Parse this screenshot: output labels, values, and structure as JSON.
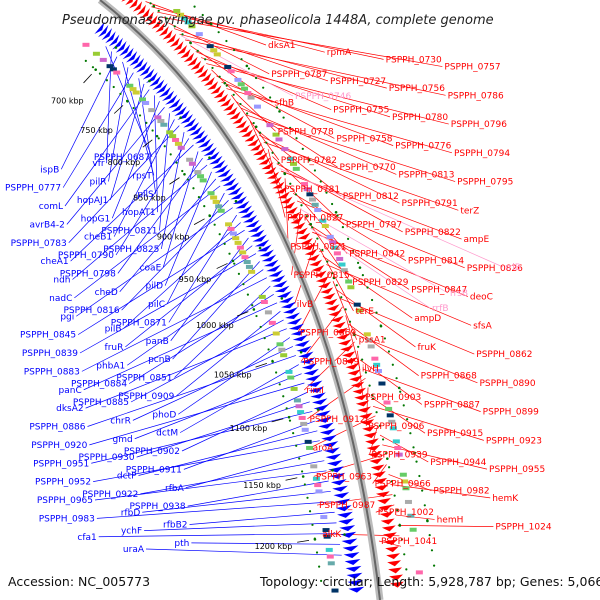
{
  "title": "Pseudomonas syringae pv. phaseolicola 1448A, complete genome",
  "footer": {
    "accession": "Accession: NC_005773",
    "topology": "Topology: circular; Length: 5,928,787 bp; Genes: 5,066"
  },
  "colors": {
    "forward": "#ff0000",
    "reverse": "#0000ff",
    "rna": "#ff99cc",
    "backbone": "#999999",
    "tick": "#007700"
  },
  "kbp_ticks": [
    "700 kbp",
    "750 kbp",
    "800 kbp",
    "850 kbp",
    "900 kbp",
    "950 kbp",
    "1000 kbp",
    "1050 kbp",
    "1100 kbp",
    "1150 kbp",
    "1200 kbp"
  ],
  "labels_right": [
    "dksA1",
    "rpmA",
    "PSPPH_0730",
    "PSPPH_0757",
    "PSPPH_0787",
    "PSPPH_0727",
    "PSPPH_0756",
    "PSPPH_0786",
    "sfhB",
    "PSPPH_0755",
    "PSPPH_0780",
    "PSPPH_0796",
    "PSPPH_0778",
    "PSPPH_0758",
    "PSPPH_0776",
    "PSPPH_0794",
    "PSPPH_0782",
    "PSPPH_0770",
    "PSPPH_0813",
    "PSPPH_0795",
    "PSPPH_0781",
    "PSPPH_0812",
    "PSPPH_0791",
    "terZ",
    "PSPPH_0827",
    "PSPPH_0797",
    "PSPPH_0822",
    "ampE",
    "PSPPH_0821",
    "PSPPH_0842",
    "PSPPH_0814",
    "PSPPH_0826",
    "PSPPH_0815",
    "PSPPH_0829",
    "PSPPH_0847",
    "deoC",
    "ilvB",
    "terE",
    "ampD",
    "sfsA",
    "PSPPH_0869",
    "pssA1",
    "fruK",
    "PSPPH_0862",
    "PSPPH_0849",
    "ilvH",
    "PSPPH_0868",
    "PSPPH_0890",
    "rimI",
    "PSPPH_0903",
    "PSPPH_0887",
    "PSPPH_0899",
    "PSPPH_0912",
    "PSPPH_0906",
    "PSPPH_0915",
    "PSPPH_0923",
    "aroA",
    "PSPPH_0939",
    "PSPPH_0944",
    "PSPPH_0955",
    "PSPPH_0963",
    "PSPPH_0966",
    "PSPPH_0982",
    "hemK",
    "PSPPH_0987",
    "PSPPH_1002",
    "hemH",
    "PSPPH_1024",
    "alkK",
    "PSPPH_1041"
  ],
  "labels_rna": [
    "PSPPH_0746",
    "rrlB",
    "rrsB",
    "rrfB"
  ],
  "labels_left": [
    "PSPPH_0687",
    "vfr",
    "ispB",
    "rpsT",
    "pilR",
    "PSPPH_0777",
    "pilS",
    "hopAJ1",
    "comL",
    "hopAT1",
    "hopG1",
    "avrB4-2",
    "PSPPH_0811",
    "cheB1",
    "PSPPH_0783",
    "PSPPH_0825",
    "PSPPH_0790",
    "cheA1",
    "coaE",
    "PSPPH_0798",
    "ndh",
    "pilD",
    "cheD",
    "nadC",
    "pilC",
    "PSPPH_0816",
    "pgi",
    "PSPPH_0871",
    "pilB",
    "PSPPH_0845",
    "panB",
    "fruR",
    "PSPPH_0839",
    "pcnB",
    "phbA1",
    "PSPPH_0883",
    "PSPPH_0851",
    "PSPPH_0884",
    "panC",
    "PSPPH_0909",
    "PSPPH_0885",
    "dksA2",
    "phoD",
    "chrR",
    "PSPPH_0886",
    "dctM",
    "gmd",
    "PSPPH_0920",
    "PSPPH_0902",
    "PSPPH_0930",
    "PSPPH_0951",
    "PSPPH_0911",
    "dctP",
    "PSPPH_0952",
    "rfbA",
    "PSPPH_0922",
    "PSPPH_0965",
    "PSPPH_0938",
    "rfbD",
    "PSPPH_0983",
    "rfbB2",
    "ychF",
    "cfa1",
    "pth",
    "uraA"
  ]
}
